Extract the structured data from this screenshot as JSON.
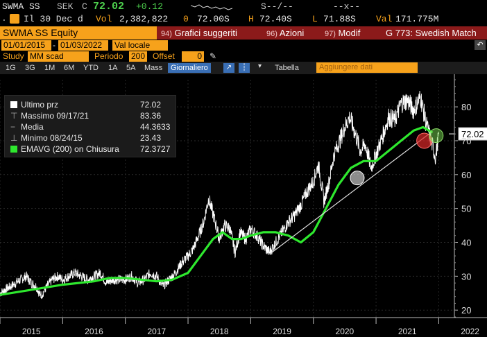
{
  "quote": {
    "ticker": "SWMA SS",
    "currency": "SEK",
    "flag": "C",
    "last": "72.02",
    "change": "+0.12",
    "dashes1": "S--/--",
    "dashes2": "--x--",
    "row2_prefix": "Il 30 Dec d",
    "vol_label": "Vol",
    "vol": "2,382,822",
    "open_label": "0",
    "open": "72.00S",
    "high_label": "H",
    "high": "72.40S",
    "low_label": "L",
    "low": "71.88S",
    "val_label": "Val",
    "val": "171.775M"
  },
  "tabs": {
    "security": "SWMA SS Equity",
    "items": [
      {
        "num": "94)",
        "label": "Grafici suggeriti"
      },
      {
        "num": "96)",
        "label": "Azioni"
      },
      {
        "num": "97)",
        "label": "Modif"
      },
      {
        "num": "",
        "label": "G 773: Swedish Match"
      }
    ]
  },
  "controls": {
    "date_from": "01/01/2015",
    "date_to": "01/03/2022",
    "currency_mode": "Val locale",
    "study_label": "Study",
    "study_value": "MM scad",
    "period_label": "Periodo",
    "period_value": "200",
    "offset_label": "Offset",
    "offset_value": "0",
    "timeframes": [
      "1G",
      "3G",
      "1M",
      "6M",
      "YTD",
      "1A",
      "5A",
      "Mass"
    ],
    "selected_frame": "Giornaliero",
    "table_label": "Tabella",
    "add_data": "Aggiungere dati"
  },
  "legend": {
    "rows": [
      {
        "name": "Ultimo prz",
        "value": "72.02"
      },
      {
        "name": "Massimo 09/17/21",
        "value": "83.36"
      },
      {
        "name": "Media",
        "value": "44.3633"
      },
      {
        "name": "Minimo 08/24/15",
        "value": "23.43"
      },
      {
        "name": "EMAVG (200)  on Chiusura",
        "value": "72.3727"
      }
    ]
  },
  "colors": {
    "amber": "#f7a21b",
    "price_line": "#ffffff",
    "ema_line": "#2ee82e",
    "tab_bg": "#8b1a1a",
    "trend_line": "#dddddd"
  },
  "chart_data": {
    "type": "line",
    "x_ticks": [
      "2015",
      "2016",
      "2017",
      "2018",
      "2019",
      "2020",
      "2021",
      "2022"
    ],
    "y_ticks": [
      20,
      30,
      40,
      50,
      60,
      70,
      80
    ],
    "ylim": [
      18,
      88
    ],
    "last_price_tag": "72.02",
    "series": [
      {
        "name": "Ultimo prz",
        "x": [
          2015.0,
          2015.08,
          2015.17,
          2015.25,
          2015.33,
          2015.42,
          2015.5,
          2015.58,
          2015.65,
          2015.75,
          2015.83,
          2015.92,
          2016.0,
          2016.1,
          2016.2,
          2016.3,
          2016.4,
          2016.5,
          2016.6,
          2016.7,
          2016.8,
          2016.9,
          2017.0,
          2017.1,
          2017.2,
          2017.3,
          2017.4,
          2017.5,
          2017.6,
          2017.7,
          2017.8,
          2017.9,
          2018.0,
          2018.08,
          2018.17,
          2018.25,
          2018.33,
          2018.42,
          2018.5,
          2018.58,
          2018.67,
          2018.75,
          2018.83,
          2018.92,
          2019.0,
          2019.1,
          2019.2,
          2019.3,
          2019.4,
          2019.5,
          2019.6,
          2019.7,
          2019.8,
          2019.9,
          2020.0,
          2020.08,
          2020.17,
          2020.25,
          2020.33,
          2020.42,
          2020.5,
          2020.58,
          2020.67,
          2020.75,
          2020.83,
          2020.92,
          2021.0,
          2021.1,
          2021.2,
          2021.3,
          2021.4,
          2021.5,
          2021.6,
          2021.71,
          2021.8,
          2021.88,
          2021.95,
          2022.0
        ],
        "values": [
          25,
          26,
          27,
          28,
          29,
          30,
          28,
          27,
          24,
          27,
          29,
          30,
          29,
          30,
          31,
          30,
          29,
          30,
          31,
          28,
          29,
          29,
          29,
          30,
          28,
          29,
          31,
          30,
          27,
          29,
          31,
          34,
          36,
          38,
          42,
          46,
          53,
          47,
          41,
          45,
          44,
          37,
          43,
          41,
          44,
          42,
          39,
          37,
          40,
          43,
          46,
          48,
          51,
          55,
          58,
          63,
          52,
          58,
          66,
          70,
          74,
          77,
          72,
          67,
          69,
          62,
          66,
          71,
          77,
          76,
          81,
          82,
          79,
          83,
          75,
          70,
          65,
          72
        ]
      },
      {
        "name": "EMAVG (200)  on Chiusura",
        "x": [
          2015.0,
          2015.5,
          2016.0,
          2016.5,
          2016.75,
          2017.0,
          2017.25,
          2017.5,
          2017.75,
          2018.0,
          2018.2,
          2018.4,
          2018.55,
          2018.7,
          2018.85,
          2019.0,
          2019.2,
          2019.4,
          2019.6,
          2019.8,
          2020.0,
          2020.2,
          2020.4,
          2020.6,
          2020.8,
          2021.0,
          2021.2,
          2021.4,
          2021.6,
          2021.75,
          2021.9
        ],
        "values": [
          24.5,
          26,
          27.5,
          28.5,
          29.5,
          29.5,
          29,
          28.5,
          29,
          31,
          36,
          41,
          43,
          41,
          41,
          42,
          43,
          43,
          42,
          40,
          43,
          50,
          57,
          62,
          64,
          64,
          67,
          70,
          73,
          74,
          72.4
        ]
      }
    ]
  }
}
